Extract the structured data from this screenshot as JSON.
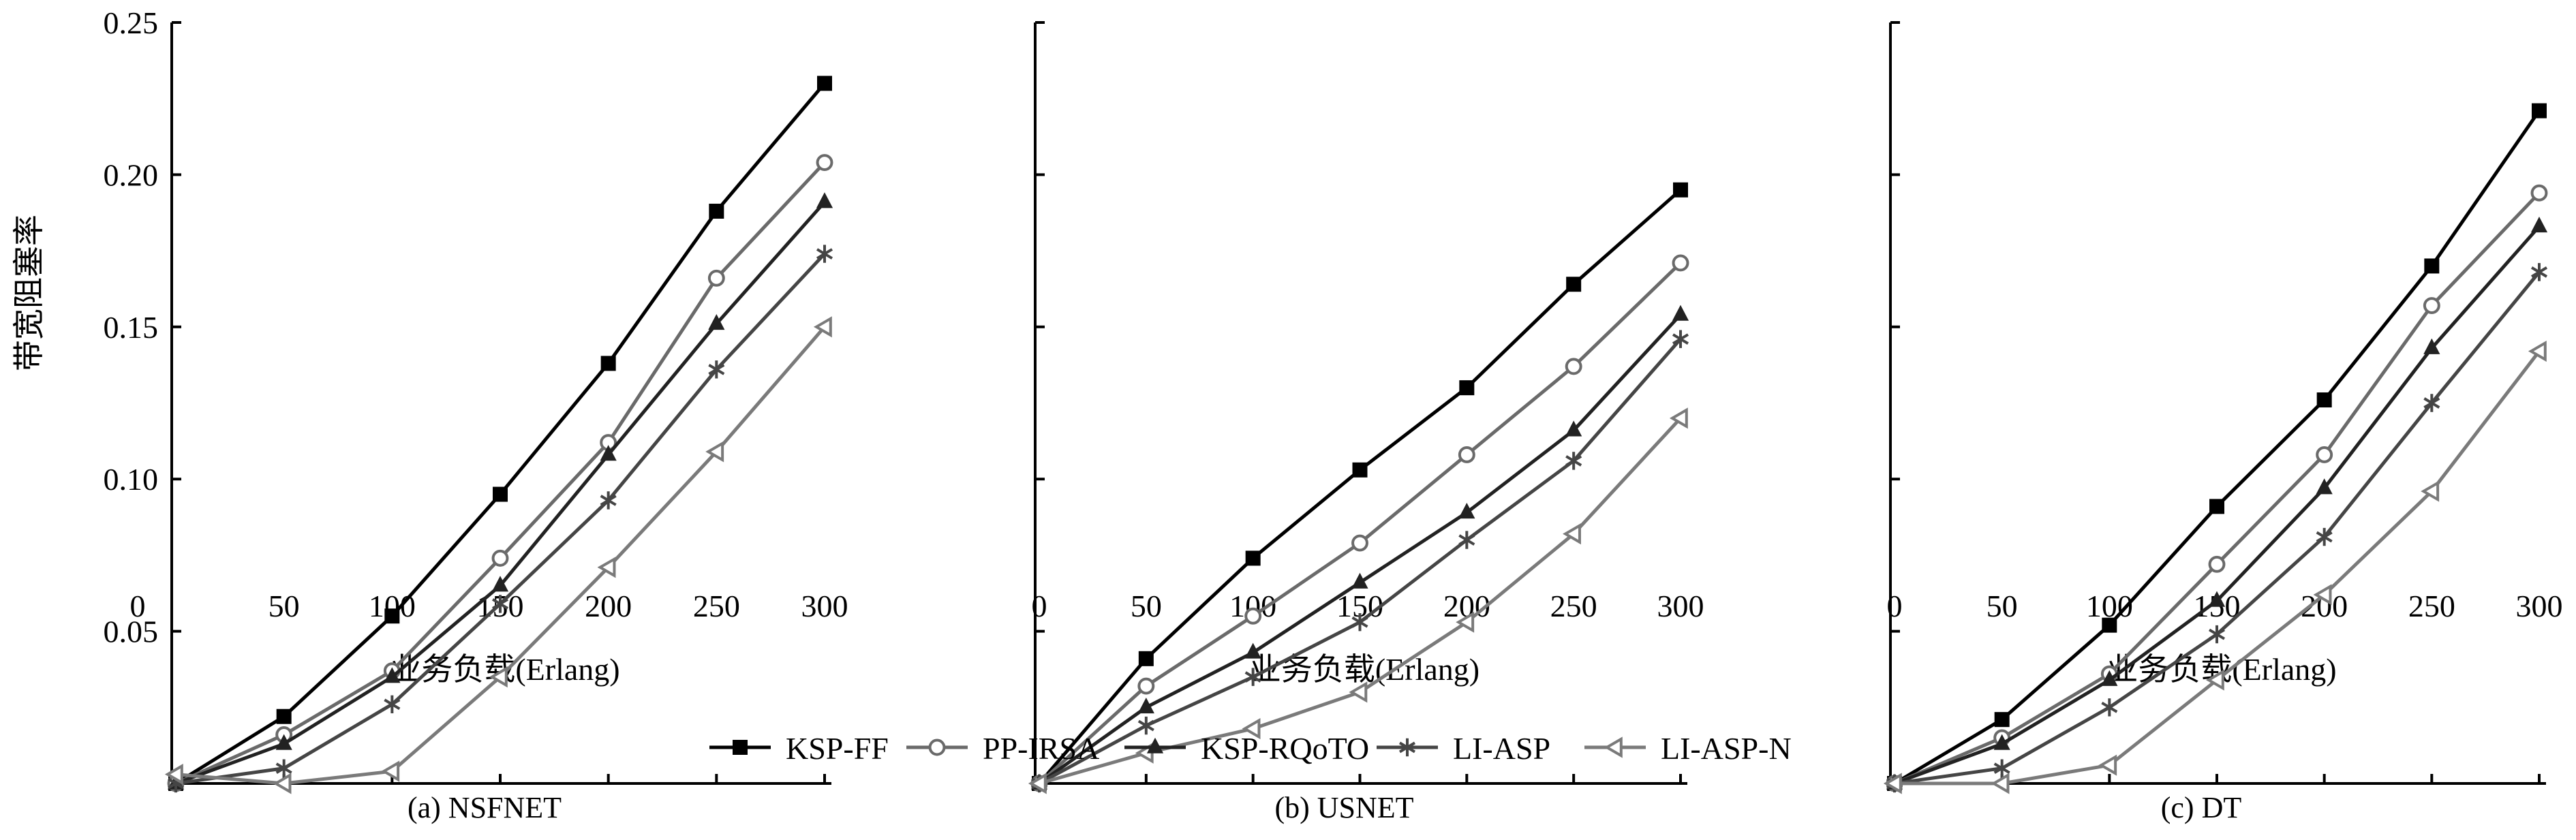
{
  "legend": [
    "KSP-FF",
    "PP-IRSA",
    "KSP-RQoTO",
    "LI-ASP",
    "LI-ASP-N"
  ],
  "series_style": [
    {
      "color": "#000000",
      "marker": "square-filled"
    },
    {
      "color": "#6a6a6a",
      "marker": "circle-open"
    },
    {
      "color": "#222222",
      "marker": "triangle-up-filled"
    },
    {
      "color": "#454545",
      "marker": "asterisk"
    },
    {
      "color": "#7a7a7a",
      "marker": "triangle-left-open"
    }
  ],
  "chart_data": [
    {
      "type": "line",
      "caption": "(a) NSFNET",
      "xlabel": "业务负载(Erlang)",
      "ylabel": "带宽阻塞率",
      "x": [
        0,
        50,
        100,
        150,
        200,
        250,
        300
      ],
      "xticks": [
        "0",
        "50",
        "100",
        "150",
        "200",
        "250",
        "300"
      ],
      "yticks": [
        "0.05",
        "0.10",
        "0.15",
        "0.20",
        "0.25"
      ],
      "ylim": [
        0,
        0.25
      ],
      "series": [
        {
          "name": "KSP-FF",
          "values": [
            0,
            0.022,
            0.055,
            0.095,
            0.138,
            0.188,
            0.23
          ]
        },
        {
          "name": "PP-IRSA",
          "values": [
            0,
            0.016,
            0.037,
            0.074,
            0.112,
            0.166,
            0.204
          ]
        },
        {
          "name": "KSP-RQoTO",
          "values": [
            0,
            0.013,
            0.035,
            0.065,
            0.108,
            0.151,
            0.191
          ]
        },
        {
          "name": "LI-ASP",
          "values": [
            0,
            0.005,
            0.026,
            0.059,
            0.093,
            0.136,
            0.174
          ]
        },
        {
          "name": "LI-ASP-N",
          "values": [
            0.003,
            0,
            0.004,
            0.035,
            0.071,
            0.109,
            0.15
          ]
        }
      ]
    },
    {
      "type": "line",
      "caption": "(b)  USNET",
      "xlabel": "业务负载(Erlang)",
      "x": [
        0,
        50,
        100,
        150,
        200,
        250,
        300
      ],
      "xticks": [
        "0",
        "50",
        "100",
        "150",
        "200",
        "250",
        "300"
      ],
      "ylim": [
        0,
        0.25
      ],
      "series": [
        {
          "name": "KSP-FF",
          "values": [
            0,
            0.041,
            0.074,
            0.103,
            0.13,
            0.164,
            0.195
          ]
        },
        {
          "name": "PP-IRSA",
          "values": [
            0,
            0.032,
            0.055,
            0.079,
            0.108,
            0.137,
            0.171
          ]
        },
        {
          "name": "KSP-RQoTO",
          "values": [
            0,
            0.025,
            0.043,
            0.066,
            0.089,
            0.116,
            0.154
          ]
        },
        {
          "name": "LI-ASP",
          "values": [
            0,
            0.019,
            0.035,
            0.053,
            0.08,
            0.106,
            0.146
          ]
        },
        {
          "name": "LI-ASP-N",
          "values": [
            0,
            0.01,
            0.018,
            0.03,
            0.053,
            0.082,
            0.12
          ]
        }
      ]
    },
    {
      "type": "line",
      "caption": "(c) DT",
      "xlabel": "业务负载(Erlang)",
      "x": [
        0,
        50,
        100,
        150,
        200,
        250,
        300
      ],
      "xticks": [
        "0",
        "50",
        "100",
        "150",
        "200",
        "250",
        "300"
      ],
      "ylim": [
        0,
        0.25
      ],
      "series": [
        {
          "name": "KSP-FF",
          "values": [
            0,
            0.021,
            0.052,
            0.091,
            0.126,
            0.17,
            0.221
          ]
        },
        {
          "name": "PP-IRSA",
          "values": [
            0,
            0.015,
            0.036,
            0.072,
            0.108,
            0.157,
            0.194
          ]
        },
        {
          "name": "KSP-RQoTO",
          "values": [
            0,
            0.013,
            0.034,
            0.06,
            0.097,
            0.143,
            0.183
          ]
        },
        {
          "name": "LI-ASP",
          "values": [
            0,
            0.005,
            0.025,
            0.049,
            0.081,
            0.125,
            0.168
          ]
        },
        {
          "name": "LI-ASP-N",
          "values": [
            0,
            0,
            0.006,
            0.034,
            0.062,
            0.096,
            0.142
          ]
        }
      ]
    }
  ]
}
